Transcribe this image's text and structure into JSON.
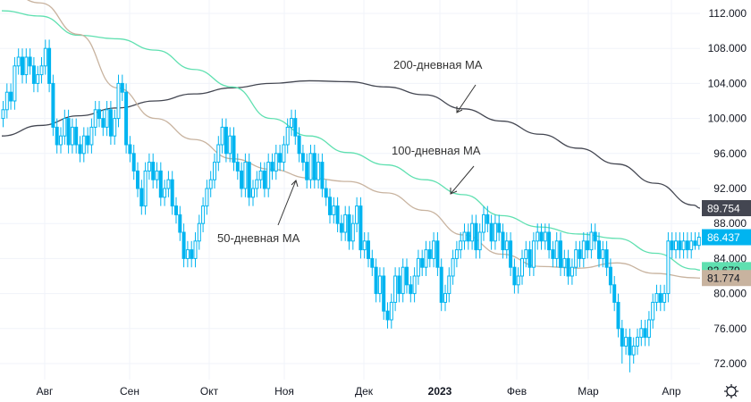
{
  "chart_data": {
    "type": "candlestick",
    "title": "",
    "y_axis": {
      "ticks": [
        "112.000",
        "108.000",
        "104.000",
        "100.000",
        "96.000",
        "92.000",
        "88.000",
        "84.000",
        "80.000",
        "76.000",
        "72.000"
      ],
      "range": [
        70.5,
        113.5
      ],
      "side": "right"
    },
    "x_axis": {
      "ticks": [
        "Авг",
        "Сен",
        "Окт",
        "Ноя",
        "Дек",
        "2023",
        "Фев",
        "Мар",
        "Апр"
      ]
    },
    "grid": true,
    "candle_color": "#00b4f0",
    "candles": {
      "open": [
        100,
        101,
        103,
        102,
        106,
        107,
        105,
        107,
        106,
        104,
        105,
        106,
        108,
        104,
        99,
        97,
        98,
        100,
        97,
        99,
        97,
        96,
        98,
        97,
        99,
        101,
        100,
        99,
        101,
        98,
        100,
        104,
        103,
        97,
        96,
        94,
        92,
        90,
        94,
        95,
        93,
        94,
        91,
        92,
        93,
        90,
        89,
        87,
        84,
        85,
        84,
        86,
        88,
        90,
        92,
        93,
        95,
        97,
        99,
        96,
        98,
        95,
        94,
        92,
        95,
        91,
        92,
        93,
        94,
        92,
        95,
        94,
        96,
        95,
        97,
        99,
        100,
        98,
        96,
        95,
        93,
        96,
        93,
        95,
        92,
        91,
        89,
        90,
        88,
        87,
        89,
        86,
        88,
        90,
        85,
        86,
        84,
        83,
        80,
        82,
        78,
        77,
        79,
        82,
        80,
        83,
        81,
        80,
        82,
        84,
        83,
        85,
        84,
        86,
        83,
        79,
        80,
        82,
        84,
        85,
        86,
        87,
        86,
        88,
        85,
        87,
        89,
        88,
        86,
        88,
        87,
        85,
        86,
        83,
        81,
        82,
        84,
        85,
        83,
        86,
        87,
        86,
        87,
        85,
        84,
        86,
        83,
        84,
        82,
        83,
        85,
        84,
        86,
        85,
        87,
        86,
        84,
        85,
        83,
        81,
        79,
        76,
        74,
        75,
        73,
        74,
        75,
        76,
        75,
        77,
        79,
        80,
        79,
        80,
        86,
        85,
        86,
        85,
        86,
        85,
        86,
        85.5
      ],
      "high": [
        102,
        104,
        104,
        107,
        108,
        108,
        108,
        108,
        107,
        106,
        107,
        109,
        109,
        105,
        100,
        99,
        101,
        101,
        100,
        100,
        98,
        99,
        99,
        100,
        102,
        102,
        101,
        102,
        102,
        101,
        105,
        105,
        104,
        98,
        97,
        95,
        93,
        95,
        96,
        96,
        95,
        95,
        93,
        94,
        94,
        91,
        90,
        88,
        86,
        86,
        87,
        89,
        91,
        93,
        94,
        96,
        98,
        100,
        100,
        99,
        99,
        96,
        95,
        96,
        96,
        93,
        94,
        95,
        95,
        96,
        96,
        97,
        97,
        98,
        100,
        101,
        101,
        99,
        97,
        96,
        97,
        97,
        96,
        96,
        93,
        92,
        91,
        91,
        89,
        90,
        90,
        89,
        91,
        91,
        87,
        87,
        85,
        84,
        83,
        83,
        79,
        80,
        83,
        83,
        84,
        84,
        82,
        83,
        85,
        85,
        86,
        86,
        87,
        87,
        84,
        81,
        83,
        85,
        86,
        87,
        88,
        88,
        89,
        89,
        88,
        90,
        90,
        89,
        89,
        89,
        88,
        87,
        87,
        84,
        83,
        85,
        86,
        86,
        87,
        88,
        88,
        88,
        88,
        86,
        87,
        87,
        85,
        85,
        84,
        86,
        86,
        87,
        87,
        88,
        88,
        87,
        86,
        86,
        84,
        82,
        80,
        77,
        76,
        76,
        75,
        76,
        77,
        77,
        78,
        80,
        81,
        81,
        81,
        87,
        87,
        87,
        87,
        87,
        87,
        87,
        87,
        87
      ],
      "low": [
        99,
        100,
        101,
        101,
        105,
        104,
        104,
        105,
        103,
        103,
        104,
        105,
        103,
        98,
        96,
        96,
        97,
        96,
        96,
        96,
        95,
        95,
        96,
        96,
        98,
        99,
        98,
        98,
        97,
        97,
        99,
        102,
        96,
        95,
        93,
        91,
        89,
        89,
        93,
        92,
        92,
        90,
        90,
        91,
        89,
        88,
        86,
        83,
        83,
        83,
        83,
        85,
        87,
        89,
        91,
        92,
        94,
        96,
        95,
        95,
        94,
        93,
        91,
        91,
        90,
        90,
        91,
        92,
        91,
        91,
        93,
        93,
        94,
        94,
        96,
        98,
        97,
        95,
        94,
        92,
        92,
        92,
        92,
        91,
        90,
        88,
        88,
        87,
        86,
        86,
        85,
        85,
        87,
        84,
        84,
        83,
        82,
        79,
        79,
        77,
        76,
        76,
        78,
        79,
        79,
        80,
        79,
        79,
        81,
        82,
        82,
        83,
        83,
        82,
        78,
        78,
        79,
        81,
        83,
        84,
        85,
        85,
        85,
        84,
        84,
        86,
        87,
        85,
        85,
        86,
        84,
        84,
        82,
        80,
        80,
        81,
        83,
        82,
        82,
        85,
        85,
        85,
        84,
        83,
        83,
        82,
        82,
        81,
        81,
        82,
        83,
        83,
        84,
        84,
        85,
        83,
        83,
        82,
        80,
        78,
        75,
        72,
        73,
        71,
        72,
        73,
        74,
        74,
        74,
        76,
        78,
        78,
        78,
        79,
        84,
        84,
        84,
        84,
        84,
        84,
        85,
        85
      ],
      "close": [
        101,
        103,
        102,
        106,
        107,
        105,
        107,
        106,
        104,
        105,
        106,
        108,
        104,
        99,
        97,
        98,
        100,
        97,
        99,
        97,
        96,
        98,
        97,
        99,
        101,
        100,
        99,
        101,
        98,
        100,
        104,
        103,
        97,
        96,
        94,
        92,
        90,
        94,
        95,
        93,
        94,
        91,
        92,
        93,
        90,
        89,
        87,
        84,
        85,
        84,
        86,
        88,
        90,
        92,
        93,
        95,
        97,
        99,
        96,
        98,
        95,
        94,
        92,
        95,
        91,
        92,
        93,
        94,
        92,
        95,
        94,
        96,
        95,
        97,
        99,
        100,
        98,
        96,
        95,
        93,
        96,
        93,
        95,
        92,
        91,
        89,
        90,
        88,
        87,
        89,
        86,
        88,
        90,
        85,
        86,
        84,
        83,
        80,
        82,
        78,
        77,
        79,
        82,
        80,
        83,
        81,
        80,
        82,
        84,
        83,
        85,
        84,
        86,
        83,
        79,
        80,
        82,
        84,
        85,
        86,
        87,
        86,
        88,
        85,
        87,
        89,
        88,
        86,
        88,
        87,
        85,
        86,
        83,
        81,
        82,
        84,
        85,
        83,
        86,
        87,
        86,
        87,
        85,
        84,
        86,
        83,
        84,
        82,
        83,
        85,
        84,
        86,
        85,
        87,
        86,
        84,
        85,
        83,
        81,
        79,
        76,
        74,
        75,
        73,
        74,
        75,
        76,
        75,
        77,
        79,
        80,
        79,
        80,
        86,
        85,
        86,
        85,
        86,
        85,
        86,
        85.5,
        86.437
      ]
    },
    "series": [
      {
        "name": "200-дневная МА",
        "color": "#434651",
        "last": "89.754",
        "sample_every": 10,
        "values": [
          98.0,
          99.2,
          100.3,
          101.2,
          102.0,
          102.8,
          103.5,
          104.0,
          104.3,
          104.2,
          103.6,
          102.7,
          101.1,
          99.7,
          98.2,
          96.6,
          94.8,
          92.6,
          90.1,
          89.754
        ]
      },
      {
        "name": "100-дневная МА",
        "color": "#5fe0b0",
        "last": "82.679",
        "sample_every": 10,
        "values": [
          112.3,
          111.7,
          109.5,
          109.1,
          107.8,
          105.6,
          103.6,
          100.0,
          98.0,
          96.1,
          94.7,
          93.0,
          91.3,
          88.9,
          87.6,
          86.8,
          86.3,
          84.6,
          82.8,
          82.679
        ]
      },
      {
        "name": "50-дневная МА",
        "color": "#c8b39f",
        "last": "81.774",
        "sample_every": 10,
        "values": [
          115.0,
          113.2,
          109.6,
          103.5,
          100.0,
          97.6,
          95.4,
          94.2,
          93.2,
          92.8,
          91.5,
          89.5,
          86.7,
          84.5,
          83.1,
          82.9,
          83.5,
          82.3,
          81.8,
          81.774
        ]
      }
    ],
    "last_price": {
      "value": "86.437",
      "color": "#00b4f0"
    },
    "annotations": [
      "200-дневная МА",
      "100-дневная МА",
      "50-дневная МА"
    ]
  },
  "settings_icon": "gear-icon"
}
